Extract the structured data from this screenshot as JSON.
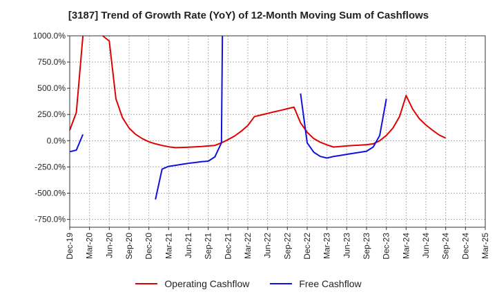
{
  "chart_data": {
    "type": "line",
    "title": "[3187]  Trend of Growth Rate (YoY) of 12-Month Moving Sum of Cashflows",
    "xlabel": "",
    "ylabel": "",
    "ylim": [
      -825,
      1000
    ],
    "yticks": [
      1000,
      750,
      500,
      250,
      0,
      -250,
      -500,
      -750
    ],
    "ytick_labels": [
      "1000.0%",
      "750.0%",
      "500.0%",
      "250.0%",
      "0.0%",
      "-250.0%",
      "-500.0%",
      "-750.0%"
    ],
    "x_tick_labels": [
      "Dec-19",
      "Mar-20",
      "Jun-20",
      "Sep-20",
      "Dec-20",
      "Mar-21",
      "Jun-21",
      "Sep-21",
      "Dec-21",
      "Mar-22",
      "Jun-22",
      "Sep-22",
      "Dec-22",
      "Mar-23",
      "Jun-23",
      "Sep-23",
      "Dec-23",
      "Mar-24",
      "Jun-24",
      "Sep-24",
      "Dec-24",
      "Mar-25"
    ],
    "grid": true,
    "legend": "bottom",
    "series": [
      {
        "name": "Operating Cashflow",
        "color": "#e00000",
        "points": [
          [
            0,
            100
          ],
          [
            1,
            270
          ],
          [
            2,
            1000
          ],
          [
            null,
            null
          ],
          [
            5,
            1000
          ],
          [
            6,
            950
          ],
          [
            7,
            400
          ],
          [
            8,
            220
          ],
          [
            9,
            120
          ],
          [
            10,
            60
          ],
          [
            11,
            20
          ],
          [
            12,
            -10
          ],
          [
            13,
            -30
          ],
          [
            14,
            -45
          ],
          [
            15,
            -58
          ],
          [
            16,
            -66
          ],
          [
            17,
            -64
          ],
          [
            18,
            -62
          ],
          [
            19,
            -58
          ],
          [
            20,
            -55
          ],
          [
            21,
            -50
          ],
          [
            22,
            -45
          ],
          [
            23,
            -20
          ],
          [
            24,
            10
          ],
          [
            25,
            45
          ],
          [
            26,
            90
          ],
          [
            27,
            145
          ],
          [
            28,
            230
          ],
          [
            29,
            245
          ],
          [
            30,
            260
          ],
          [
            31,
            275
          ],
          [
            32,
            290
          ],
          [
            33,
            305
          ],
          [
            34,
            320
          ],
          [
            35,
            170
          ],
          [
            36,
            80
          ],
          [
            37,
            20
          ],
          [
            38,
            -15
          ],
          [
            39,
            -40
          ],
          [
            40,
            -60
          ],
          [
            41,
            -55
          ],
          [
            42,
            -50
          ],
          [
            43,
            -45
          ],
          [
            44,
            -42
          ],
          [
            45,
            -38
          ],
          [
            46,
            -30
          ],
          [
            47,
            0
          ],
          [
            48,
            50
          ],
          [
            49,
            120
          ],
          [
            50,
            230
          ],
          [
            51,
            430
          ],
          [
            52,
            300
          ],
          [
            53,
            210
          ],
          [
            54,
            150
          ],
          [
            55,
            100
          ],
          [
            56,
            55
          ],
          [
            57,
            25
          ]
        ]
      },
      {
        "name": "Free Cashflow",
        "color": "#1010e0",
        "segments": [
          [
            [
              0,
              -105
            ],
            [
              1,
              -90
            ],
            [
              2,
              60
            ]
          ],
          [
            [
              13,
              -560
            ],
            [
              14,
              -270
            ],
            [
              15,
              -245
            ],
            [
              16,
              -235
            ],
            [
              17,
              -225
            ],
            [
              18,
              -215
            ],
            [
              19,
              -208
            ],
            [
              20,
              -200
            ],
            [
              21,
              -195
            ],
            [
              22,
              -155
            ],
            [
              23,
              -20
            ],
            [
              23.15,
              1000
            ]
          ],
          [
            [
              35,
              450
            ],
            [
              36,
              -20
            ],
            [
              37,
              -110
            ],
            [
              38,
              -150
            ],
            [
              39,
              -165
            ],
            [
              40,
              -150
            ],
            [
              41,
              -140
            ],
            [
              42,
              -130
            ],
            [
              43,
              -120
            ],
            [
              44,
              -110
            ],
            [
              45,
              -100
            ],
            [
              46,
              -60
            ],
            [
              47,
              50
            ],
            [
              48,
              400
            ]
          ]
        ]
      }
    ]
  },
  "legend": {
    "operating_label": "Operating Cashflow",
    "free_label": "Free Cashflow"
  }
}
